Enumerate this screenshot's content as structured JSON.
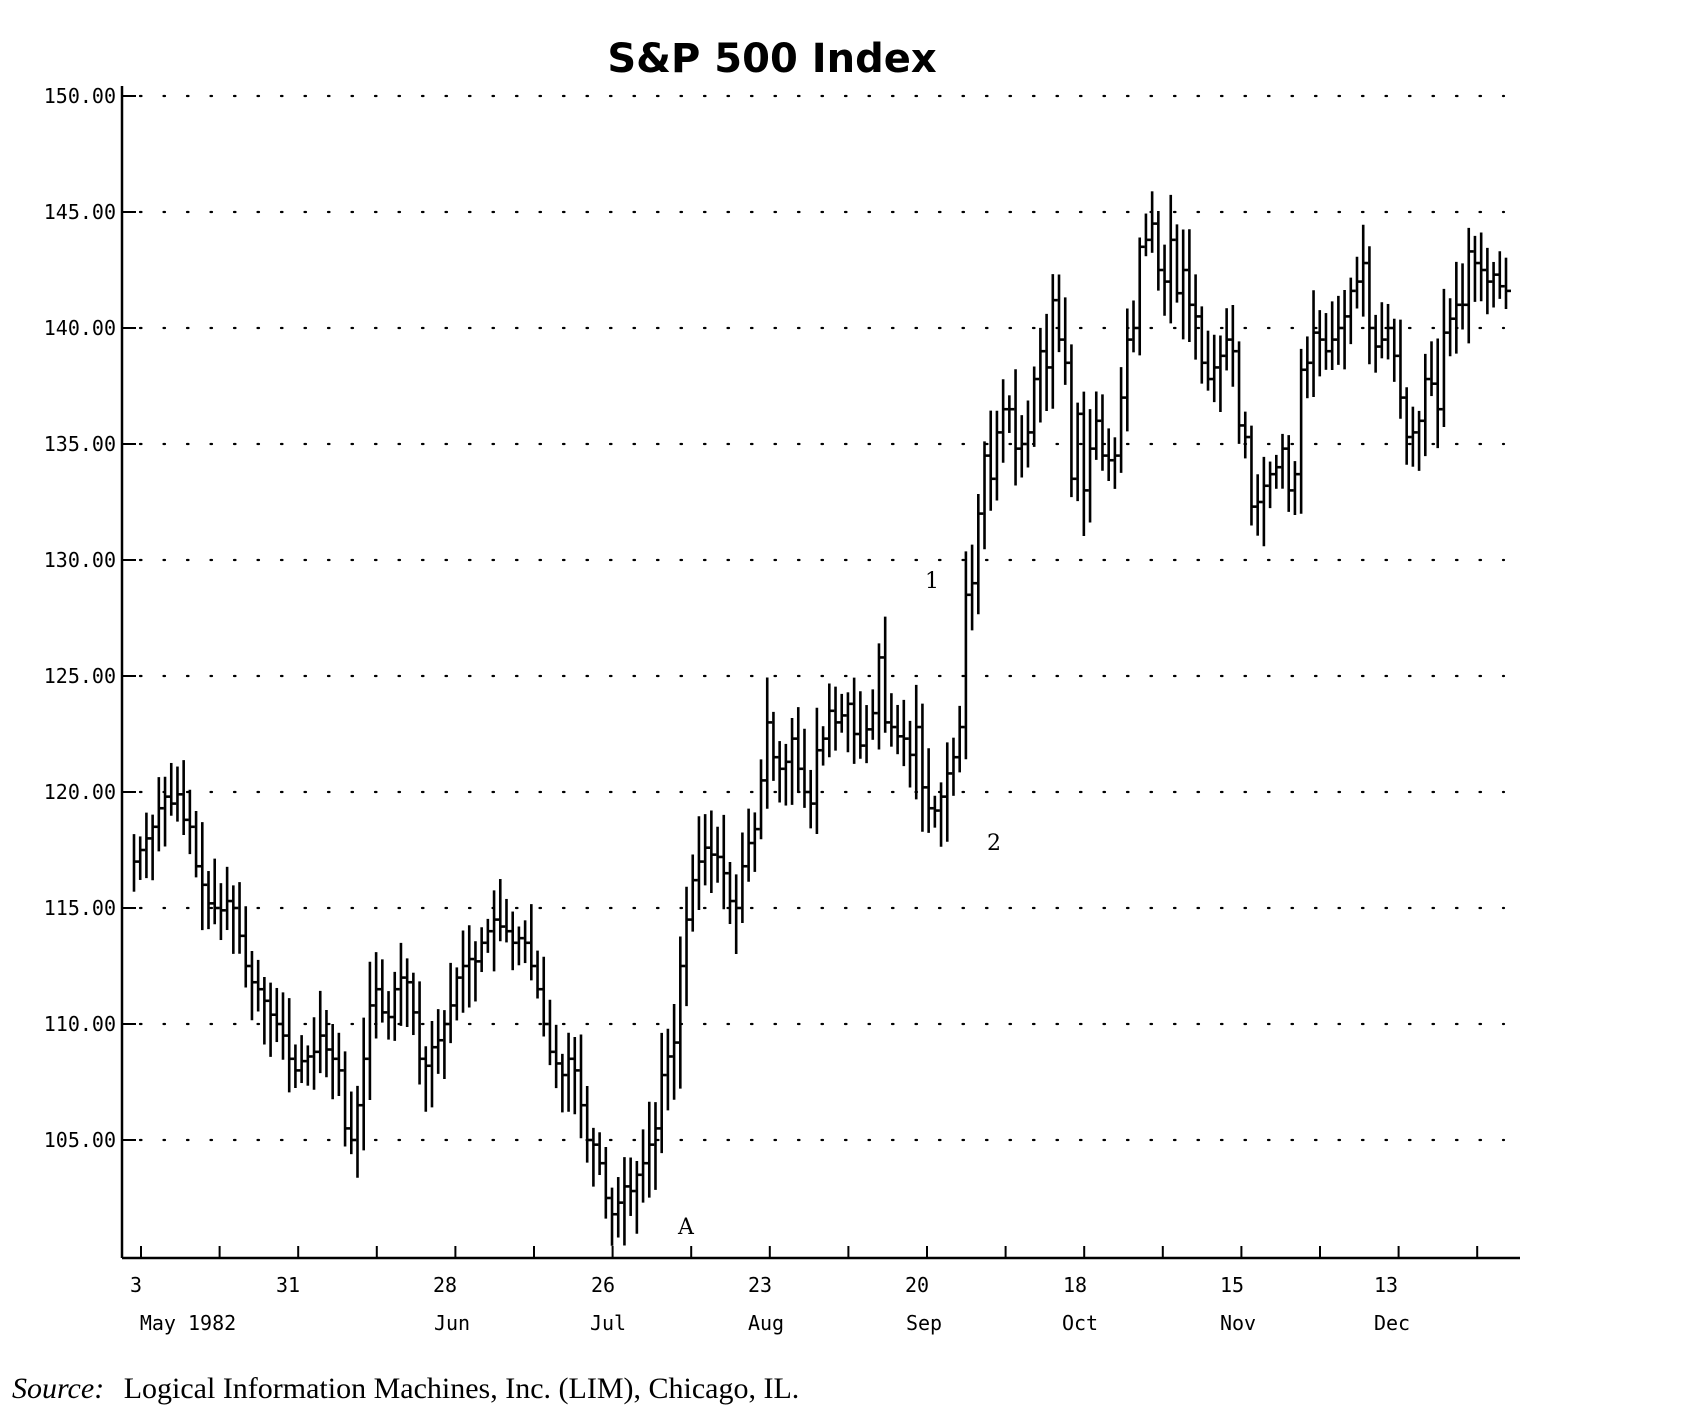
{
  "chart_data": {
    "type": "bar",
    "subtype": "ohlc",
    "title": "S&P 500 Index",
    "xlabel": "",
    "ylabel": "",
    "ylim": [
      100,
      150
    ],
    "yticks": [
      "150.00",
      "145.00",
      "140.00",
      "135.00",
      "130.00",
      "125.00",
      "120.00",
      "115.00",
      "110.00",
      "105.00"
    ],
    "xticks": [
      {
        "day": "3",
        "month": "May 1982"
      },
      {
        "day": "31",
        "month": ""
      },
      {
        "day": "28",
        "month": "Jun"
      },
      {
        "day": "26",
        "month": "Jul"
      },
      {
        "day": "23",
        "month": "Aug"
      },
      {
        "day": "20",
        "month": "Sep"
      },
      {
        "day": "18",
        "month": "Oct"
      },
      {
        "day": "15",
        "month": "Nov"
      },
      {
        "day": "13",
        "month": "Dec"
      }
    ],
    "grid": true,
    "close_series": [
      117.0,
      117.5,
      118.0,
      118.5,
      119.3,
      119.8,
      119.5,
      119.9,
      118.8,
      118.5,
      116.8,
      116.0,
      115.2,
      115.0,
      114.9,
      115.3,
      115.0,
      113.8,
      112.5,
      111.8,
      111.5,
      111.0,
      110.4,
      110.0,
      109.5,
      108.5,
      108.0,
      108.4,
      108.6,
      108.8,
      109.5,
      108.9,
      108.5,
      108.0,
      105.5,
      105.0,
      106.5,
      108.5,
      110.8,
      111.5,
      110.5,
      110.3,
      111.5,
      112.0,
      111.8,
      110.5,
      108.5,
      108.2,
      109.0,
      109.3,
      110.0,
      110.8,
      112.0,
      112.5,
      112.8,
      112.7,
      113.5,
      114.0,
      114.5,
      114.2,
      114.0,
      113.5,
      113.7,
      113.5,
      112.5,
      111.5,
      110.0,
      108.8,
      108.3,
      107.8,
      108.5,
      108.0,
      106.5,
      105.0,
      104.8,
      104.0,
      102.5,
      101.8,
      102.3,
      103.0,
      102.8,
      103.5,
      104.0,
      104.8,
      105.5,
      107.8,
      108.6,
      109.2,
      112.5,
      114.5,
      116.2,
      117.0,
      117.6,
      117.3,
      117.2,
      116.5,
      115.3,
      115.0,
      116.8,
      117.8,
      118.4,
      120.5,
      123.0,
      121.5,
      121.0,
      121.3,
      122.3,
      121.0,
      120.0,
      119.5,
      121.8,
      122.3,
      123.5,
      123.0,
      123.3,
      123.8,
      122.5,
      122.0,
      122.7,
      123.4,
      125.8,
      123.0,
      122.8,
      122.4,
      122.3,
      121.6,
      122.8,
      120.2,
      119.3,
      119.2,
      119.8,
      120.8,
      121.5,
      122.8,
      128.5,
      129.0,
      132.0,
      134.5,
      133.5,
      135.5,
      136.5,
      136.5,
      134.8,
      135.0,
      135.5,
      137.8,
      139.0,
      138.3,
      141.2,
      139.5,
      138.5,
      133.5,
      136.3,
      133.0,
      134.8,
      136.0,
      134.5,
      134.3,
      134.5,
      137.0,
      139.5,
      140.0,
      143.5,
      143.8,
      144.5,
      142.5,
      142.0,
      143.8,
      141.5,
      142.5,
      141.0,
      140.5,
      138.5,
      137.8,
      138.3,
      138.8,
      139.5,
      139.0,
      135.8,
      135.3,
      132.3,
      132.5,
      133.2,
      133.7,
      134.0,
      134.8,
      133.0,
      133.7,
      138.2,
      138.5,
      139.8,
      139.5,
      139.0,
      139.5,
      140.0,
      140.5,
      141.6,
      142.0,
      142.8,
      140.0,
      139.2,
      139.5,
      140.0,
      138.8,
      137.0,
      135.3,
      135.5,
      136.0,
      137.8,
      137.6,
      136.5,
      139.8,
      140.4,
      141.0,
      141.0,
      143.3,
      142.8,
      142.5,
      142.0,
      142.3,
      141.8,
      141.6
    ],
    "ohlc_note": "Each vertical bar spans low-high around close; daily OHLC read approx. from chart."
  },
  "annotations": {
    "label_1": "1",
    "label_2": "2",
    "label_A": "A"
  },
  "source": {
    "label": "Source:",
    "text": "Logical Information Machines, Inc. (LIM), Chicago, IL."
  }
}
